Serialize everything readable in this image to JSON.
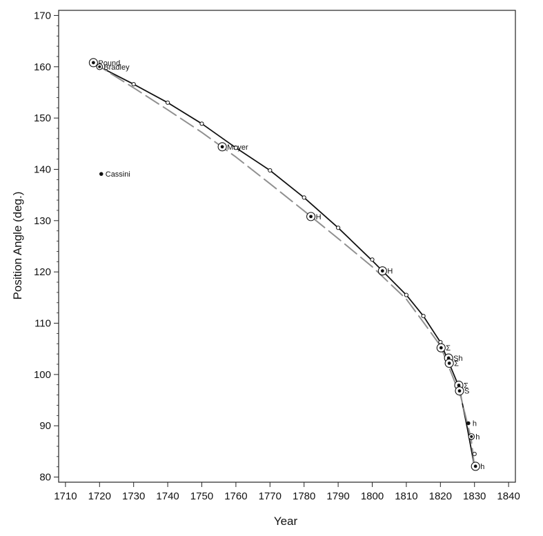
{
  "chart_data": {
    "type": "scatter",
    "title": "",
    "xlabel": "Year",
    "ylabel": "Position Angle (deg.)",
    "xlim": [
      1708,
      1842
    ],
    "ylim": [
      79,
      171
    ],
    "x_ticks": [
      1710,
      1720,
      1730,
      1740,
      1750,
      1760,
      1770,
      1780,
      1790,
      1800,
      1810,
      1820,
      1830,
      1840
    ],
    "x_tick_labels": [
      "1710",
      "1720",
      "1730",
      "1740",
      "1750",
      "1760",
      "1770",
      "1780",
      "1790",
      "1800",
      "1810",
      "1820",
      "1830",
      "1840"
    ],
    "y_ticks": [
      80,
      90,
      100,
      110,
      120,
      130,
      140,
      150,
      160,
      170
    ],
    "y_tick_labels": [
      "80",
      "90",
      "100",
      "110",
      "120",
      "130",
      "140",
      "150",
      "160",
      "170"
    ],
    "y_minor_step": 2,
    "grid": false,
    "series": [
      {
        "style": "solid",
        "color": "#111111",
        "x": [
          1718.2,
          1720,
          1730,
          1740,
          1750,
          1760,
          1770,
          1780,
          1790,
          1800,
          1810,
          1815,
          1820,
          1823,
          1825.5,
          1828,
          1830
        ],
        "y": [
          160.8,
          160.0,
          156.6,
          153.0,
          148.9,
          144.2,
          139.8,
          134.5,
          128.6,
          122.2,
          115.5,
          111.4,
          106.3,
          101.5,
          97.5,
          89.2,
          82.0
        ]
      },
      {
        "style": "dashed",
        "color": "#909090",
        "x": [
          1718.2,
          1730,
          1740,
          1750,
          1760,
          1770,
          1780,
          1790,
          1800,
          1810,
          1815,
          1820,
          1823,
          1826,
          1829,
          1830
        ],
        "y": [
          160.8,
          155.9,
          151.6,
          147.2,
          142.4,
          137.2,
          131.9,
          126.5,
          121.0,
          114.7,
          110.2,
          105.6,
          100.6,
          95.6,
          87.5,
          82.0
        ]
      },
      {
        "style": "points",
        "color": "#111111",
        "points": [
          {
            "x": 1718.2,
            "y": 160.8,
            "marker": "bull",
            "size": "large",
            "label": "Pound"
          },
          {
            "x": 1720,
            "y": 160.0,
            "marker": "bull",
            "size": "small",
            "label": "Bradley"
          },
          {
            "x": 1720.5,
            "y": 139.1,
            "marker": "dot",
            "size": "small",
            "label": "Cassini"
          },
          {
            "x": 1730,
            "y": 156.6,
            "marker": "open",
            "size": "small",
            "label": ""
          },
          {
            "x": 1740,
            "y": 153.0,
            "marker": "open",
            "size": "small",
            "label": ""
          },
          {
            "x": 1750,
            "y": 148.9,
            "marker": "open",
            "size": "small",
            "label": ""
          },
          {
            "x": 1756,
            "y": 144.4,
            "marker": "bull",
            "size": "large",
            "label": "Mayer"
          },
          {
            "x": 1760,
            "y": 144.2,
            "marker": "open",
            "size": "small",
            "label": ""
          },
          {
            "x": 1770,
            "y": 139.8,
            "marker": "open",
            "size": "small",
            "label": ""
          },
          {
            "x": 1780,
            "y": 134.5,
            "marker": "open",
            "size": "small",
            "label": ""
          },
          {
            "x": 1782,
            "y": 130.8,
            "marker": "bull",
            "size": "large",
            "label": "H"
          },
          {
            "x": 1790,
            "y": 128.6,
            "marker": "open",
            "size": "small",
            "label": ""
          },
          {
            "x": 1800,
            "y": 122.4,
            "marker": "open",
            "size": "small",
            "label": ""
          },
          {
            "x": 1803,
            "y": 120.2,
            "marker": "bull",
            "size": "large",
            "label": "H"
          },
          {
            "x": 1810,
            "y": 115.5,
            "marker": "open",
            "size": "small",
            "label": ""
          },
          {
            "x": 1815,
            "y": 111.4,
            "marker": "open",
            "size": "small",
            "label": ""
          },
          {
            "x": 1820,
            "y": 106.3,
            "marker": "open",
            "size": "small",
            "label": ""
          },
          {
            "x": 1820.2,
            "y": 105.2,
            "marker": "bull",
            "size": "large",
            "label": "Σ"
          },
          {
            "x": 1822.4,
            "y": 103.2,
            "marker": "bull",
            "size": "large",
            "label": "Sh"
          },
          {
            "x": 1822.6,
            "y": 102.2,
            "marker": "bull",
            "size": "large",
            "label": "Σ"
          },
          {
            "x": 1825.4,
            "y": 97.9,
            "marker": "bull",
            "size": "large",
            "label": "Σ"
          },
          {
            "x": 1825.6,
            "y": 96.8,
            "marker": "bull",
            "size": "large",
            "label": "S"
          },
          {
            "x": 1828.2,
            "y": 90.5,
            "marker": "dot",
            "size": "small",
            "label": "h"
          },
          {
            "x": 1829.1,
            "y": 87.9,
            "marker": "bull",
            "size": "small",
            "label": "h"
          },
          {
            "x": 1830,
            "y": 84.5,
            "marker": "open",
            "size": "small",
            "label": ""
          },
          {
            "x": 1830.3,
            "y": 82.1,
            "marker": "bull",
            "size": "large",
            "label": "h"
          }
        ]
      }
    ]
  }
}
